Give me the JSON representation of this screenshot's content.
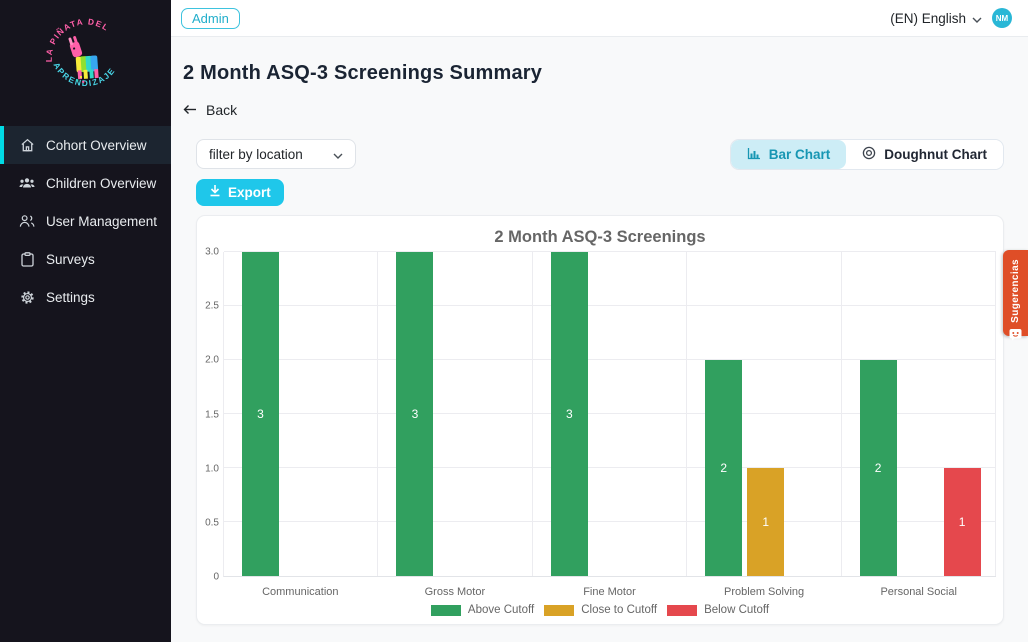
{
  "topbar": {
    "admin_badge": "Admin",
    "language_label": "(EN) English",
    "avatar_initials": "NM"
  },
  "sidebar": {
    "logo": {
      "arc_top": "LA PIÑATA DEL",
      "arc_bottom": "APRENDIZAJE"
    },
    "items": [
      {
        "label": "Cohort Overview",
        "icon": "home-icon",
        "active": true
      },
      {
        "label": "Children Overview",
        "icon": "children-icon",
        "active": false
      },
      {
        "label": "User Management",
        "icon": "users-icon",
        "active": false
      },
      {
        "label": "Surveys",
        "icon": "survey-icon",
        "active": false
      },
      {
        "label": "Settings",
        "icon": "gear-icon",
        "active": false
      }
    ]
  },
  "page": {
    "title": "2 Month ASQ-3 Screenings Summary",
    "back_label": "Back"
  },
  "controls": {
    "filter": {
      "value": "filter by location"
    },
    "export_label": "Export",
    "view_toggle": [
      {
        "label": "Bar Chart",
        "icon": "bar-chart-icon",
        "active": true
      },
      {
        "label": "Doughnut Chart",
        "icon": "doughnut-chart-icon",
        "active": false
      }
    ]
  },
  "chart_data": {
    "type": "bar",
    "title": "2 Month ASQ-3 Screenings",
    "categories": [
      "Communication",
      "Gross Motor",
      "Fine Motor",
      "Problem Solving",
      "Personal Social"
    ],
    "series": [
      {
        "name": "Above Cutoff",
        "color": "#31a05f",
        "values": [
          3,
          3,
          3,
          2,
          2
        ]
      },
      {
        "name": "Close to Cutoff",
        "color": "#d9a226",
        "values": [
          0,
          0,
          0,
          1,
          0
        ]
      },
      {
        "name": "Below Cutoff",
        "color": "#e5484d",
        "values": [
          0,
          0,
          0,
          0,
          1
        ]
      }
    ],
    "xlabel": "",
    "ylabel": "",
    "ylim": [
      0,
      3
    ],
    "yticks": [
      "0",
      "0.5",
      "1.0",
      "1.5",
      "2.0",
      "2.5",
      "3.0"
    ],
    "grid": true,
    "legend_position": "bottom"
  },
  "feedback_tab": {
    "label": "Sugerencias",
    "color": "#df4e27",
    "icon": "chat-bubble-icon"
  },
  "colors": {
    "accent_cyan": "#1fc7ea",
    "accent_teal": "#1796b3",
    "sidebar_bg": "#15141d",
    "active_item_border": "#00dbe6",
    "logo_pink": "#ff5fa8",
    "logo_cyan": "#49d6e8"
  }
}
